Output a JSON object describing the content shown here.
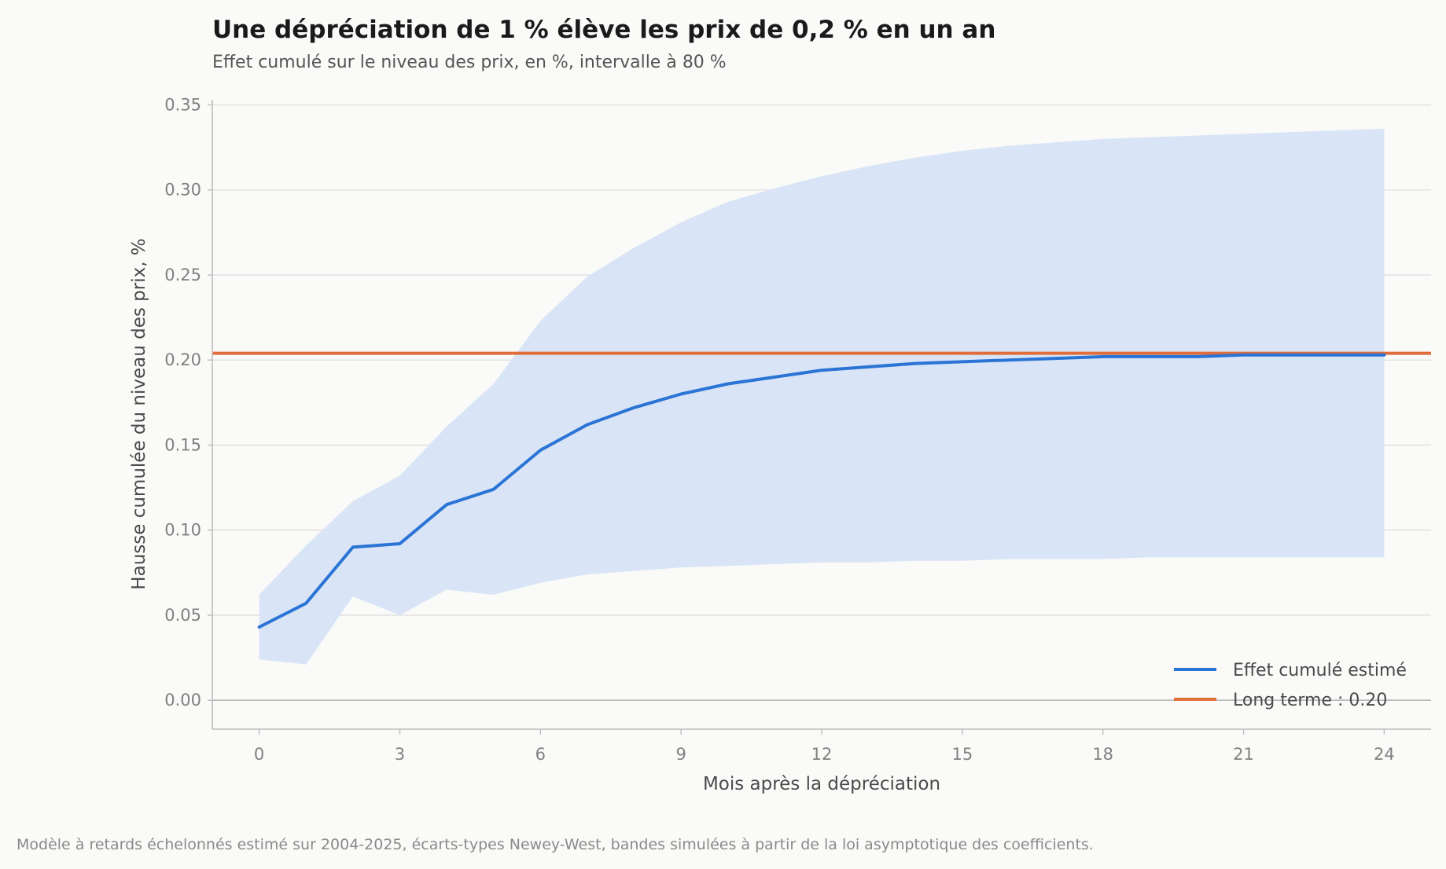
{
  "chart_data": {
    "type": "line",
    "title": "Une dépréciation de 1 % élève les prix de 0,2 % en un an",
    "subtitle": "Effet cumulé sur le niveau des prix, en %, intervalle à 80 %",
    "xlabel": "Mois après la dépréciation",
    "ylabel": "Hausse cumulée du niveau des prix, %",
    "xlim": [
      -1,
      25
    ],
    "ylim": [
      -0.017,
      0.353
    ],
    "x_ticks": [
      0,
      3,
      6,
      9,
      12,
      15,
      18,
      21,
      24
    ],
    "y_ticks": [
      "0.00",
      "0.05",
      "0.10",
      "0.15",
      "0.20",
      "0.25",
      "0.30",
      "0.35"
    ],
    "x": [
      0,
      1,
      2,
      3,
      4,
      5,
      6,
      7,
      8,
      9,
      10,
      11,
      12,
      13,
      14,
      15,
      16,
      17,
      18,
      19,
      20,
      21,
      22,
      23,
      24
    ],
    "series": [
      {
        "name": "Effet cumulé estimé",
        "color": "#2b74d6",
        "values": [
          0.043,
          0.057,
          0.09,
          0.092,
          0.115,
          0.124,
          0.147,
          0.162,
          0.172,
          0.18,
          0.186,
          0.19,
          0.194,
          0.196,
          0.198,
          0.199,
          0.2,
          0.201,
          0.202,
          0.202,
          0.202,
          0.203,
          0.203,
          0.203,
          0.203
        ]
      }
    ],
    "band": {
      "label": "intervalle à 80 %",
      "color": "#d9e5f6",
      "lower": [
        0.024,
        0.021,
        0.061,
        0.05,
        0.065,
        0.062,
        0.069,
        0.074,
        0.076,
        0.078,
        0.079,
        0.08,
        0.081,
        0.081,
        0.082,
        0.082,
        0.083,
        0.083,
        0.083,
        0.084,
        0.084,
        0.084,
        0.084,
        0.084,
        0.084
      ],
      "upper": [
        0.062,
        0.091,
        0.117,
        0.132,
        0.161,
        0.186,
        0.223,
        0.249,
        0.266,
        0.281,
        0.293,
        0.301,
        0.308,
        0.314,
        0.319,
        0.323,
        0.326,
        0.328,
        0.33,
        0.331,
        0.332,
        0.333,
        0.334,
        0.335,
        0.336
      ]
    },
    "reference_line": {
      "name": "Long terme : 0.20",
      "value": 0.204,
      "color": "#e06d3a"
    },
    "legend": {
      "placement": "bottom-right",
      "entries": [
        "Effet cumulé estimé",
        "Long terme : 0.20"
      ]
    },
    "grid": "horizontal"
  },
  "footnote": "Modèle à retards échelonnés estimé sur 2004-2025, écarts-types Newey-West, bandes simulées à partir de la loi asymptotique des coefficients."
}
